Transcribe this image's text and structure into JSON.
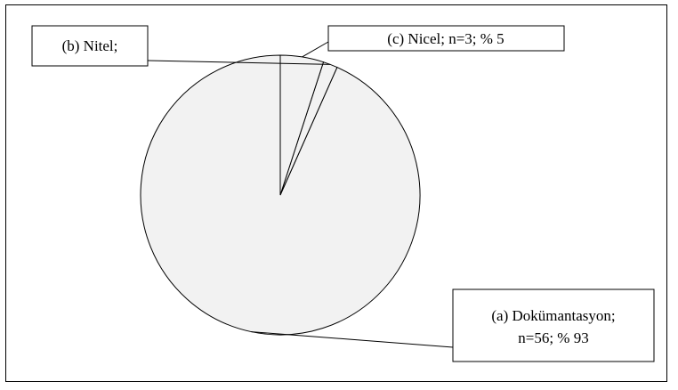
{
  "chart_data": {
    "type": "pie",
    "slices": [
      {
        "label_lines": [
          "(a) Dokümantasyon;",
          "n=56; % 93"
        ],
        "value": 56,
        "percent": 93
      },
      {
        "label_lines": [
          "(b) Nitel;"
        ],
        "value": 1,
        "percent": null
      },
      {
        "label_lines": [
          "(c) Nicel; n=3; % 5"
        ],
        "value": 3,
        "percent": 5
      }
    ],
    "start": "12 o'clock",
    "direction": "counter-clockwise",
    "slice_fill": "#f2f2f2",
    "outline_color": "#000000",
    "legend": "none"
  }
}
